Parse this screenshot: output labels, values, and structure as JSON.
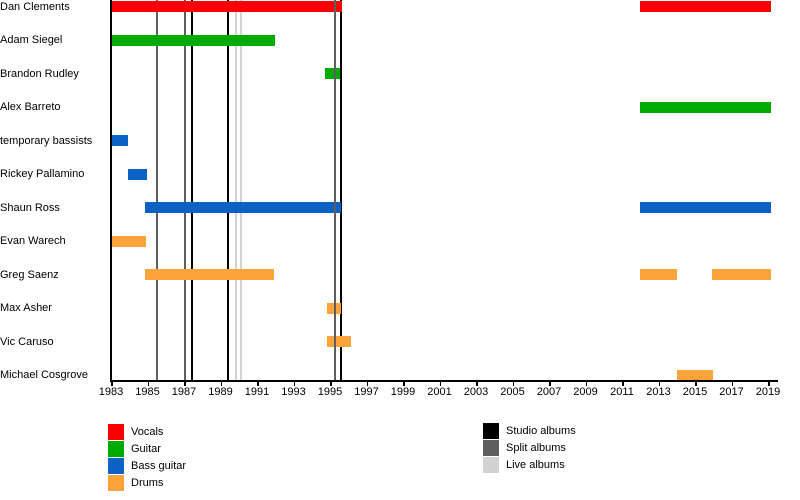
{
  "colors": {
    "vocals": "#fa0000",
    "guitar": "#00ab00",
    "bass": "#0b62c4",
    "drums": "#faa43a",
    "studio": "#000000",
    "split": "#5e5e5e",
    "live": "#d2d2d2",
    "axis": "#000000"
  },
  "chart_data": {
    "type": "timeline",
    "title": "",
    "description": "Band member tenures with release markers",
    "x_axis": {
      "start_year": 1983,
      "end_year": 2019,
      "tick_step": 2,
      "tick_labels": [
        "1983",
        "1985",
        "1987",
        "1989",
        "1991",
        "1993",
        "1995",
        "1997",
        "1999",
        "2001",
        "2003",
        "2005",
        "2007",
        "2009",
        "2011",
        "2013",
        "2015",
        "2017",
        "2019"
      ]
    },
    "members": [
      {
        "name": "Dan Clements",
        "role": "vocals",
        "stints": [
          [
            1983.0,
            1995.65
          ],
          [
            2012.0,
            2019.15
          ]
        ]
      },
      {
        "name": "Adam Siegel",
        "role": "guitar",
        "stints": [
          [
            1983.0,
            1992.0
          ]
        ]
      },
      {
        "name": "Brandon Rudley",
        "role": "guitar",
        "stints": [
          [
            1994.7,
            1995.55
          ]
        ]
      },
      {
        "name": "Alex Barreto",
        "role": "guitar",
        "stints": [
          [
            2012.0,
            2019.15
          ]
        ]
      },
      {
        "name": "temporary bassists",
        "role": "bass",
        "stints": [
          [
            1983.0,
            1983.95
          ]
        ]
      },
      {
        "name": "Rickey Pallamino",
        "role": "bass",
        "stints": [
          [
            1983.95,
            1984.95
          ]
        ]
      },
      {
        "name": "Shaun Ross",
        "role": "bass",
        "stints": [
          [
            1984.85,
            1995.6
          ],
          [
            2012.0,
            2019.15
          ]
        ]
      },
      {
        "name": "Evan Warech",
        "role": "drums",
        "stints": [
          [
            1983.0,
            1984.9
          ]
        ]
      },
      {
        "name": "Greg Saenz",
        "role": "drums",
        "stints": [
          [
            1984.85,
            1991.95
          ],
          [
            2012.0,
            2014.0
          ],
          [
            2015.95,
            2019.15
          ]
        ]
      },
      {
        "name": "Max Asher",
        "role": "drums",
        "stints": [
          [
            1994.85,
            1995.6
          ]
        ]
      },
      {
        "name": "Vic Caruso",
        "role": "drums",
        "stints": [
          [
            1994.85,
            1996.15
          ]
        ]
      },
      {
        "name": "Michael Cosgrove",
        "role": "drums",
        "stints": [
          [
            2014.0,
            2016.0
          ]
        ]
      }
    ],
    "releases": [
      {
        "year": 1985.5,
        "type": "split",
        "layer": "back"
      },
      {
        "year": 1987.05,
        "type": "split",
        "layer": "back"
      },
      {
        "year": 1987.42,
        "type": "studio",
        "layer": "back"
      },
      {
        "year": 1989.42,
        "type": "studio",
        "layer": "back"
      },
      {
        "year": 1989.85,
        "type": "live",
        "layer": "back"
      },
      {
        "year": 1990.1,
        "type": "live",
        "layer": "back"
      },
      {
        "year": 1995.27,
        "type": "split",
        "layer": "front"
      },
      {
        "year": 1995.6,
        "type": "studio",
        "layer": "back"
      }
    ]
  },
  "legend": {
    "roles": [
      {
        "label": "Vocals",
        "key": "vocals"
      },
      {
        "label": "Guitar",
        "key": "guitar"
      },
      {
        "label": "Bass guitar",
        "key": "bass"
      },
      {
        "label": "Drums",
        "key": "drums"
      }
    ],
    "releases": [
      {
        "label": "Studio albums",
        "key": "studio"
      },
      {
        "label": "Split albums",
        "key": "split"
      },
      {
        "label": "Live albums",
        "key": "live"
      }
    ]
  }
}
